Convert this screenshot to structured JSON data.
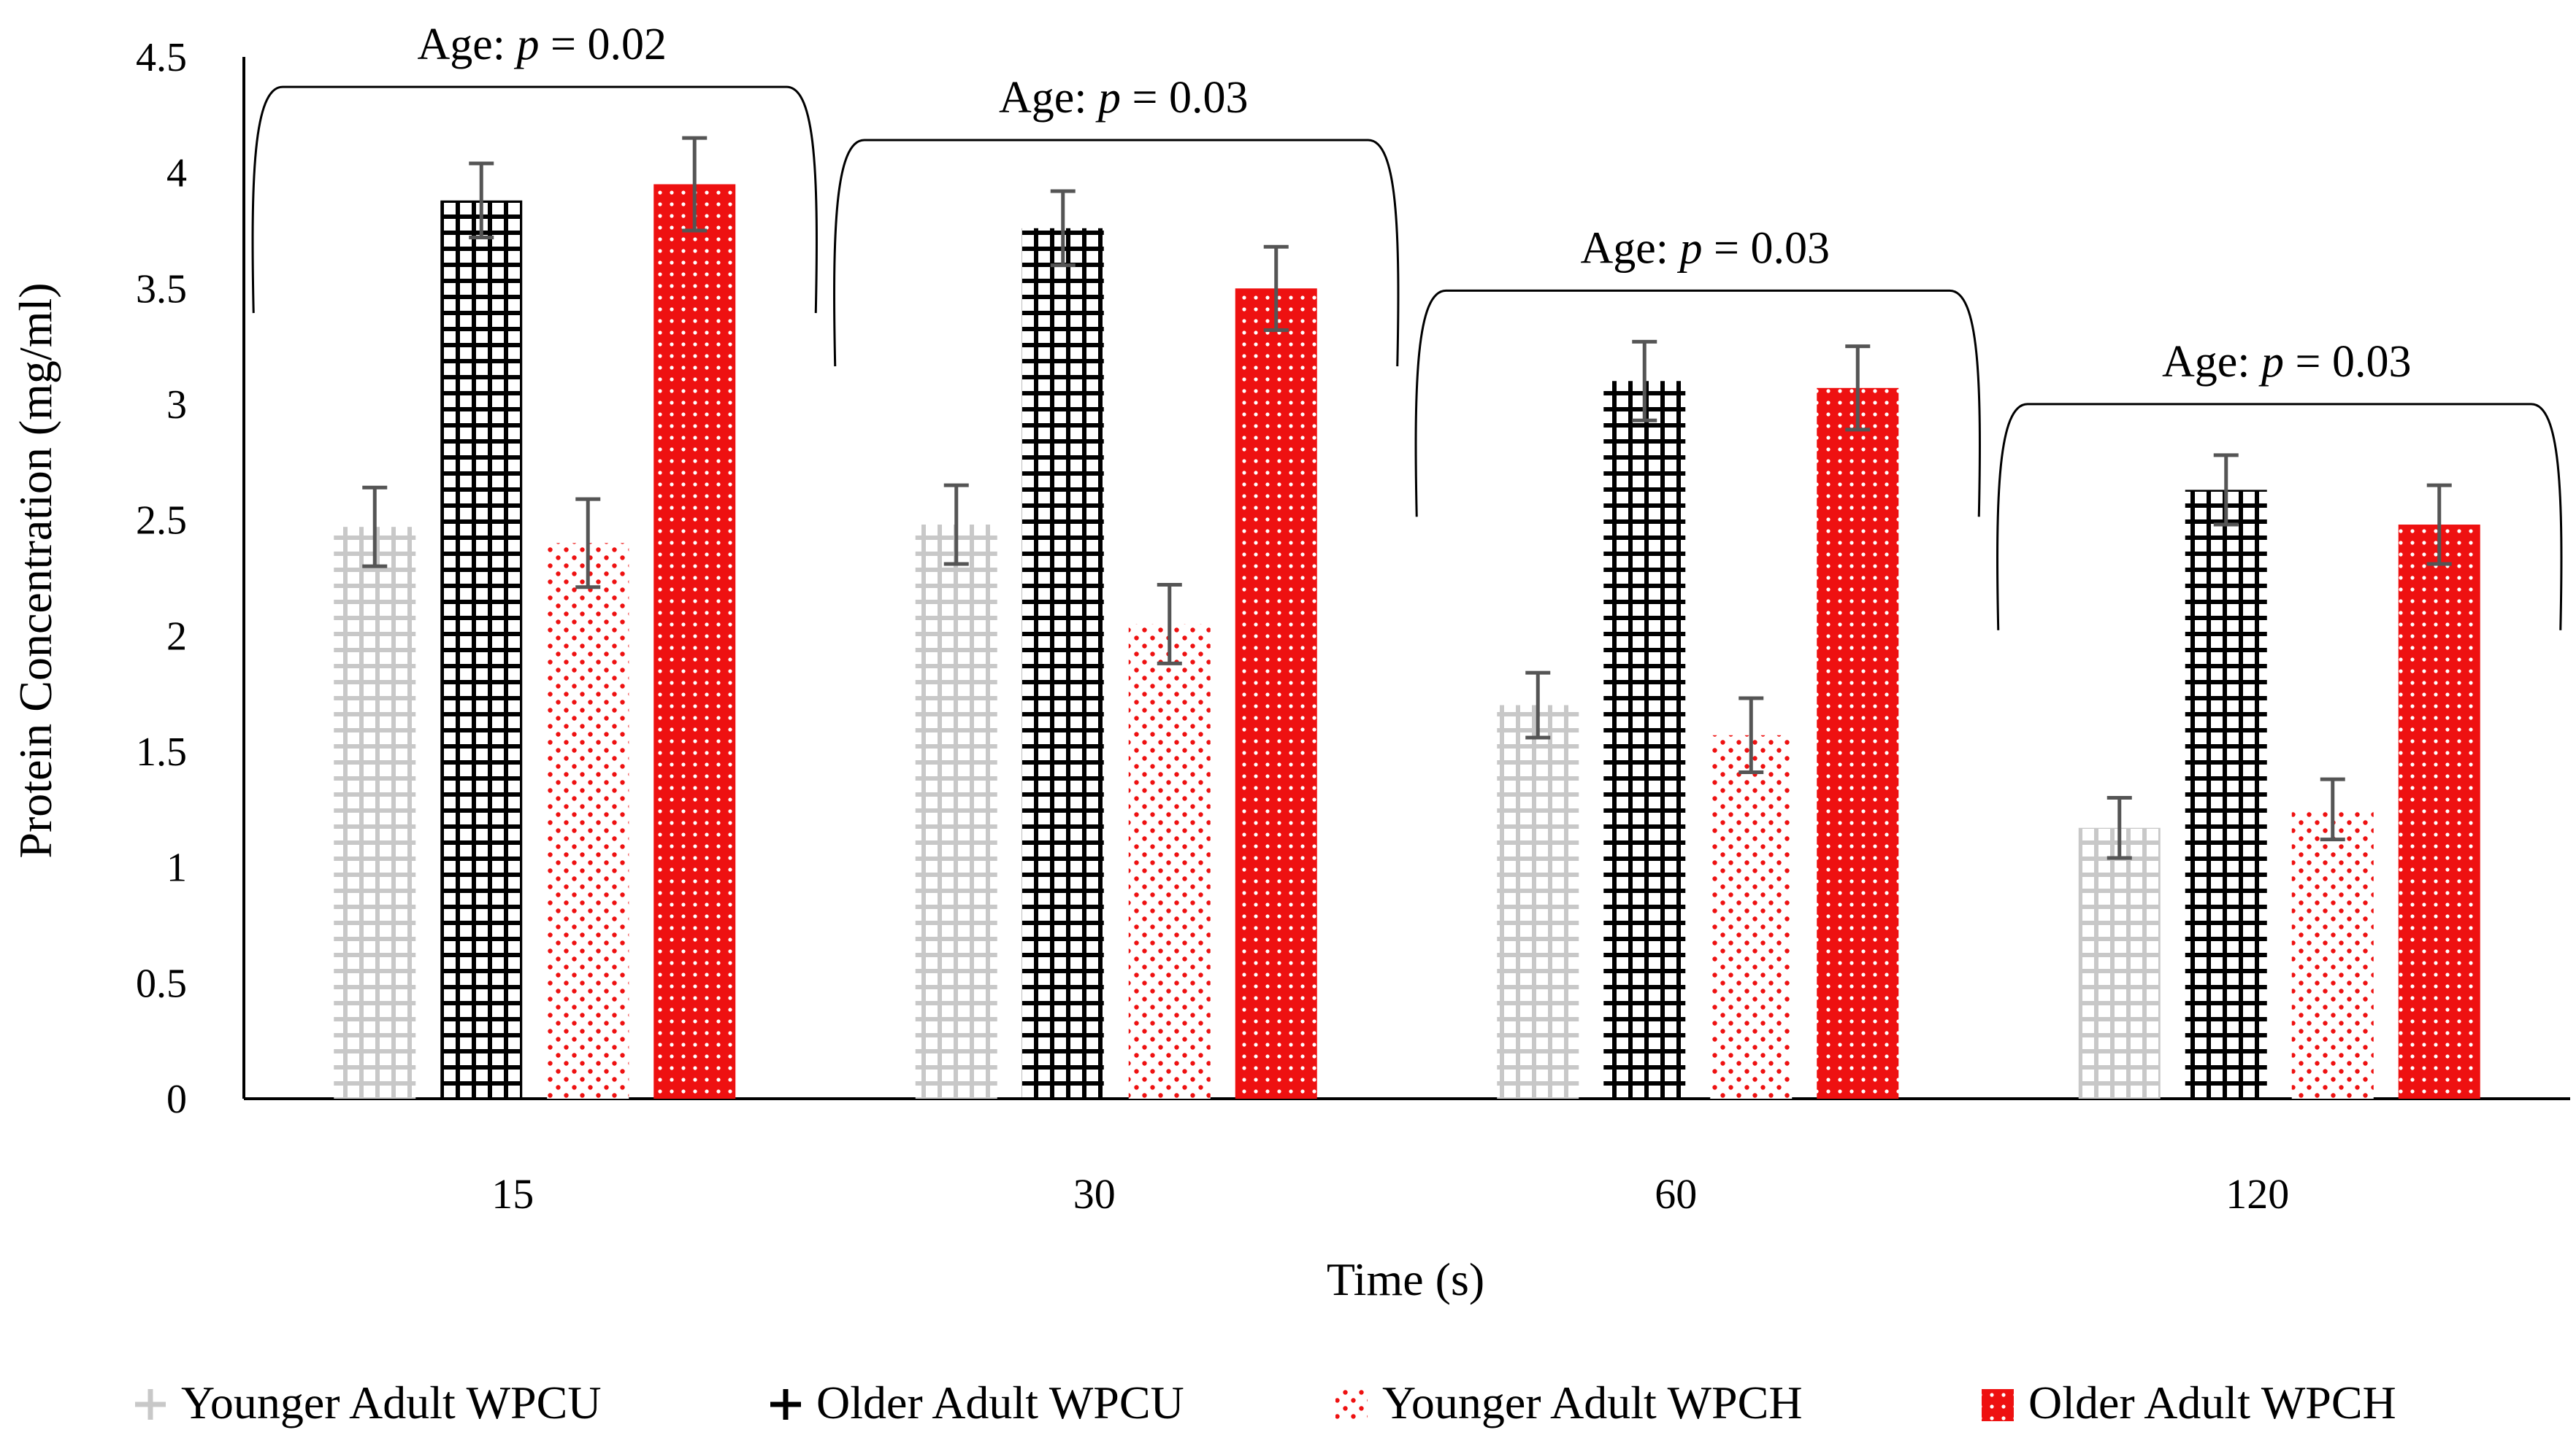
{
  "chart_data": {
    "type": "bar",
    "title": "",
    "xlabel": "Time (s)",
    "ylabel": "Protein Concentration (mg/ml)",
    "ylim": [
      0,
      4.5
    ],
    "yticks": [
      0,
      0.5,
      1,
      1.5,
      2,
      2.5,
      3,
      3.5,
      4,
      4.5
    ],
    "ytick_labels": [
      "0",
      "0.5",
      "1",
      "1.5",
      "2",
      "2.5",
      "3",
      "3.5",
      "4",
      "4.5"
    ],
    "categories": [
      "15",
      "30",
      "60",
      "120"
    ],
    "series": [
      {
        "name": "Younger Adult WPCU",
        "pattern": "light-grid",
        "color": "#c8c8c8",
        "values": [
          2.47,
          2.48,
          1.7,
          1.17
        ],
        "errors": [
          0.17,
          0.17,
          0.14,
          0.13
        ]
      },
      {
        "name": "Older Adult WPCU",
        "pattern": "dark-grid",
        "color": "#000000",
        "values": [
          3.88,
          3.76,
          3.1,
          2.63
        ],
        "errors": [
          0.16,
          0.16,
          0.17,
          0.15
        ]
      },
      {
        "name": "Younger Adult WPCH",
        "pattern": "red-dots",
        "color": "#ee1111",
        "values": [
          2.4,
          2.05,
          1.57,
          1.25
        ],
        "errors": [
          0.19,
          0.17,
          0.16,
          0.13
        ]
      },
      {
        "name": "Older Adult WPCH",
        "pattern": "red-dense",
        "color": "#ee1111",
        "values": [
          3.95,
          3.5,
          3.07,
          2.48
        ],
        "errors": [
          0.2,
          0.18,
          0.18,
          0.17
        ]
      }
    ],
    "annotations": [
      {
        "group": "15",
        "prefix": "Age: ",
        "p_symbol": "p",
        "suffix": " = 0.02"
      },
      {
        "group": "30",
        "prefix": "Age: ",
        "p_symbol": "p",
        "suffix": " = 0.03"
      },
      {
        "group": "60",
        "prefix": "Age: ",
        "p_symbol": "p",
        "suffix": " = 0.03"
      },
      {
        "group": "120",
        "prefix": "Age: ",
        "p_symbol": "p",
        "suffix": " = 0.03"
      }
    ],
    "legend_position": "bottom",
    "grid": false
  }
}
